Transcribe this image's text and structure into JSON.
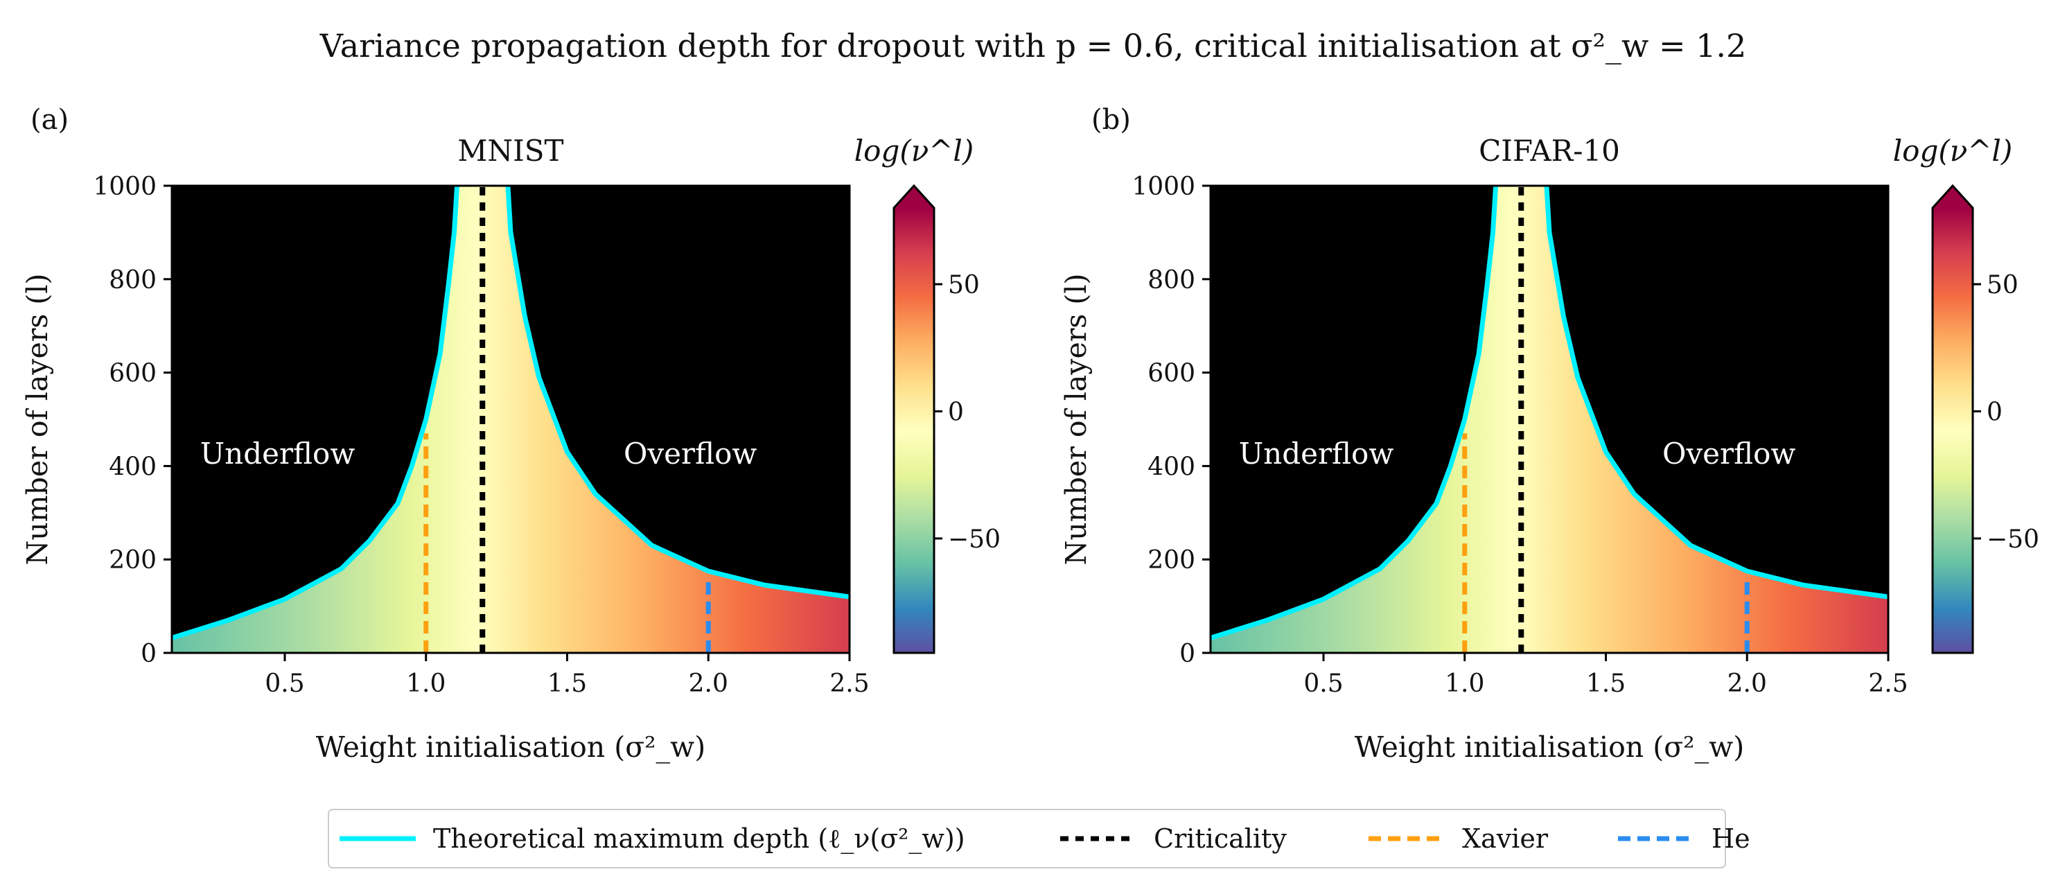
{
  "figure": {
    "title": "Variance propagation depth for dropout with p = 0.6, critical initialisation at σ²_w = 1.2"
  },
  "colors": {
    "theory": "#00f0ff",
    "criticality": "#000000",
    "xavier": "#ffa010",
    "he": "#2a8cf0",
    "background": "#000000"
  },
  "colorbar": {
    "title": "log(ν^l)",
    "ticks": [
      "50",
      "0",
      "−50"
    ],
    "range": [
      -95,
      80
    ],
    "colormap": "Spectral_r"
  },
  "legend": {
    "placement": "bottom-center",
    "items": [
      {
        "label": "Theoretical maximum depth (ℓ_ν(σ²_w))",
        "color": "#00f0ff",
        "style": "solid"
      },
      {
        "label": "Criticality",
        "color": "#000000",
        "style": "dotted"
      },
      {
        "label": "Xavier",
        "color": "#ffa010",
        "style": "dashed"
      },
      {
        "label": "He",
        "color": "#2a8cf0",
        "style": "dashed"
      }
    ]
  },
  "chart_data": [
    {
      "type": "heatmap",
      "panel": "(a)",
      "title": "MNIST",
      "xlabel": "Weight initialisation (σ²_w)",
      "ylabel": "Number of layers (l)",
      "xlim": [
        0.1,
        2.5
      ],
      "ylim": [
        0,
        1000
      ],
      "xticks": [
        "0.5",
        "1.0",
        "1.5",
        "2.0",
        "2.5"
      ],
      "yticks": [
        "0",
        "200",
        "400",
        "600",
        "800",
        "1000"
      ],
      "region_labels": [
        "Underflow",
        "Overflow"
      ],
      "critical_sigma2": 1.2,
      "xavier": {
        "x": 1.0,
        "y_max": 470
      },
      "he": {
        "x": 2.0,
        "y_max": 160
      },
      "theoretical_depth_left": {
        "x": [
          0.1,
          0.3,
          0.5,
          0.7,
          0.8,
          0.9,
          0.95,
          1.0,
          1.05,
          1.08,
          1.1,
          1.11
        ],
        "y": [
          32,
          70,
          115,
          180,
          240,
          320,
          400,
          500,
          640,
          790,
          900,
          1000
        ]
      },
      "theoretical_depth_right": {
        "x": [
          1.29,
          1.3,
          1.35,
          1.4,
          1.5,
          1.6,
          1.8,
          2.0,
          2.2,
          2.5
        ],
        "y": [
          1000,
          900,
          720,
          590,
          430,
          340,
          230,
          175,
          145,
          120
        ]
      }
    },
    {
      "type": "heatmap",
      "panel": "(b)",
      "title": "CIFAR-10",
      "xlabel": "Weight initialisation (σ²_w)",
      "ylabel": "Number of layers (l)",
      "xlim": [
        0.1,
        2.5
      ],
      "ylim": [
        0,
        1000
      ],
      "xticks": [
        "0.5",
        "1.0",
        "1.5",
        "2.0",
        "2.5"
      ],
      "yticks": [
        "0",
        "200",
        "400",
        "600",
        "800",
        "1000"
      ],
      "region_labels": [
        "Underflow",
        "Overflow"
      ],
      "critical_sigma2": 1.2,
      "xavier": {
        "x": 1.0,
        "y_max": 470
      },
      "he": {
        "x": 2.0,
        "y_max": 160
      },
      "theoretical_depth_left": {
        "x": [
          0.1,
          0.3,
          0.5,
          0.7,
          0.8,
          0.9,
          0.95,
          1.0,
          1.05,
          1.08,
          1.1,
          1.11
        ],
        "y": [
          32,
          70,
          115,
          180,
          240,
          320,
          400,
          500,
          640,
          790,
          900,
          1000
        ]
      },
      "theoretical_depth_right": {
        "x": [
          1.29,
          1.3,
          1.35,
          1.4,
          1.5,
          1.6,
          1.8,
          2.0,
          2.2,
          2.5
        ],
        "y": [
          1000,
          900,
          720,
          590,
          430,
          340,
          230,
          175,
          145,
          120
        ]
      }
    }
  ]
}
